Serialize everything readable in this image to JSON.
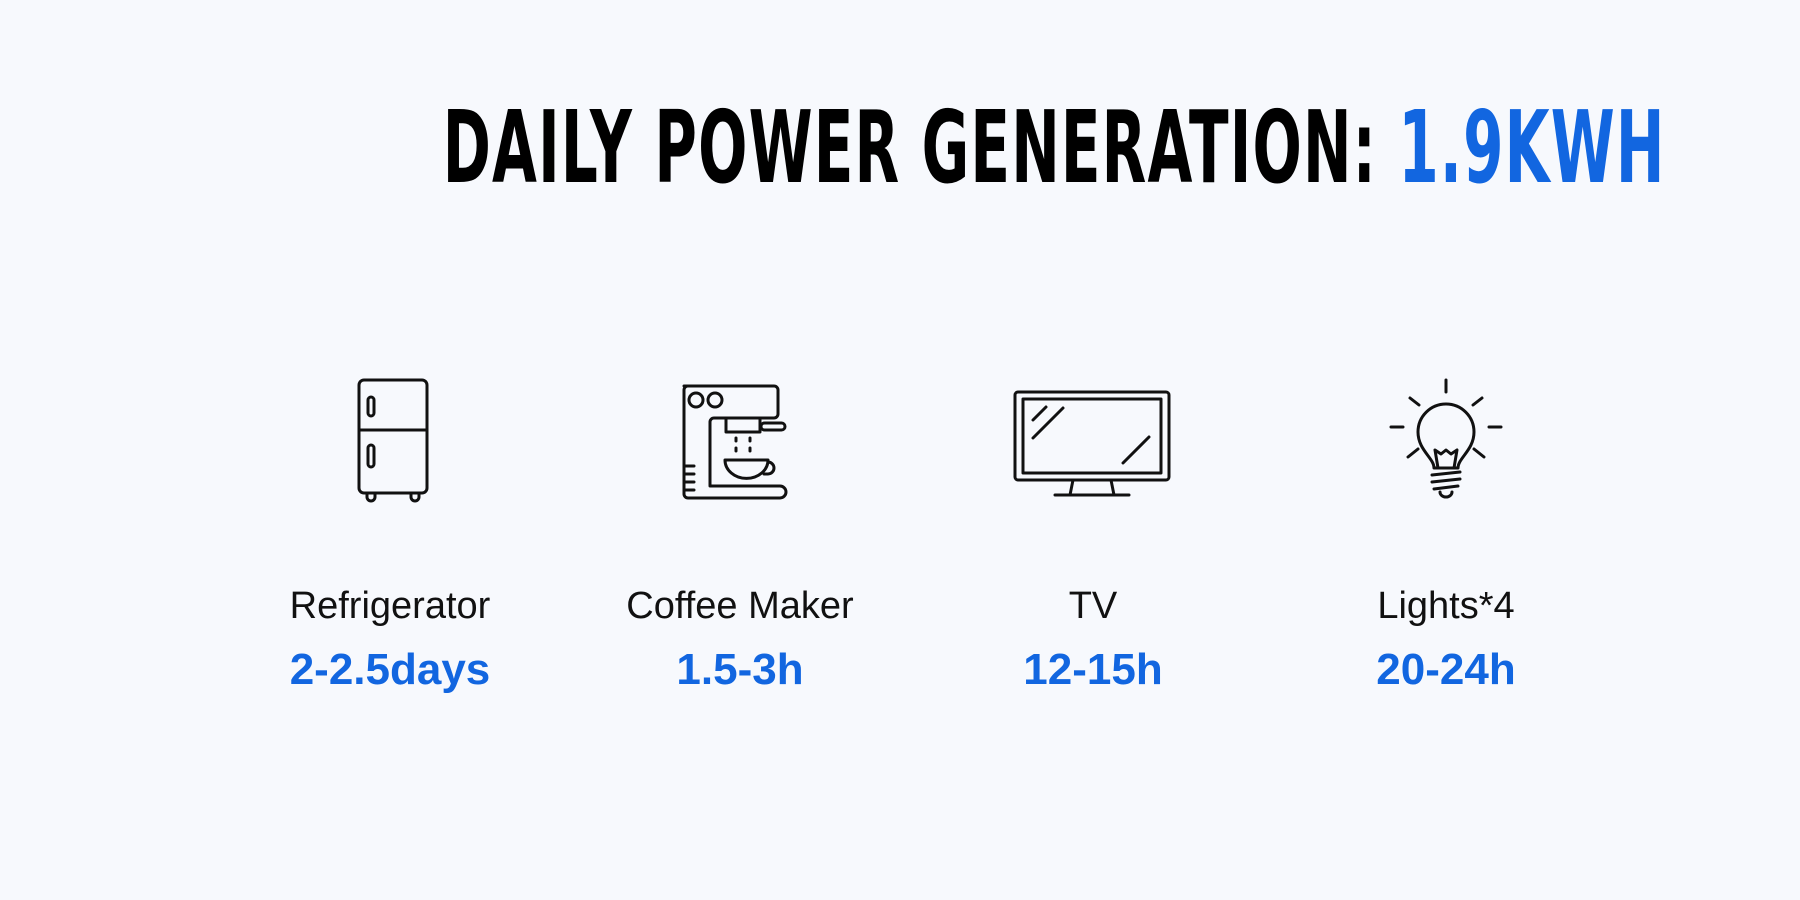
{
  "header": {
    "title_prefix": "DAILY POWER GENERATION:",
    "title_value": "1.9KWH"
  },
  "colors": {
    "accent": "#1266e0",
    "text": "#111111",
    "background": "#f7f9fd"
  },
  "appliances": [
    {
      "icon": "refrigerator-icon",
      "label": "Refrigerator",
      "value": "2-2.5days"
    },
    {
      "icon": "coffee-maker-icon",
      "label": "Coffee Maker",
      "value": "1.5-3h"
    },
    {
      "icon": "tv-icon",
      "label": "TV",
      "value": "12-15h"
    },
    {
      "icon": "light-bulb-icon",
      "label": "Lights*4",
      "value": "20-24h"
    }
  ]
}
